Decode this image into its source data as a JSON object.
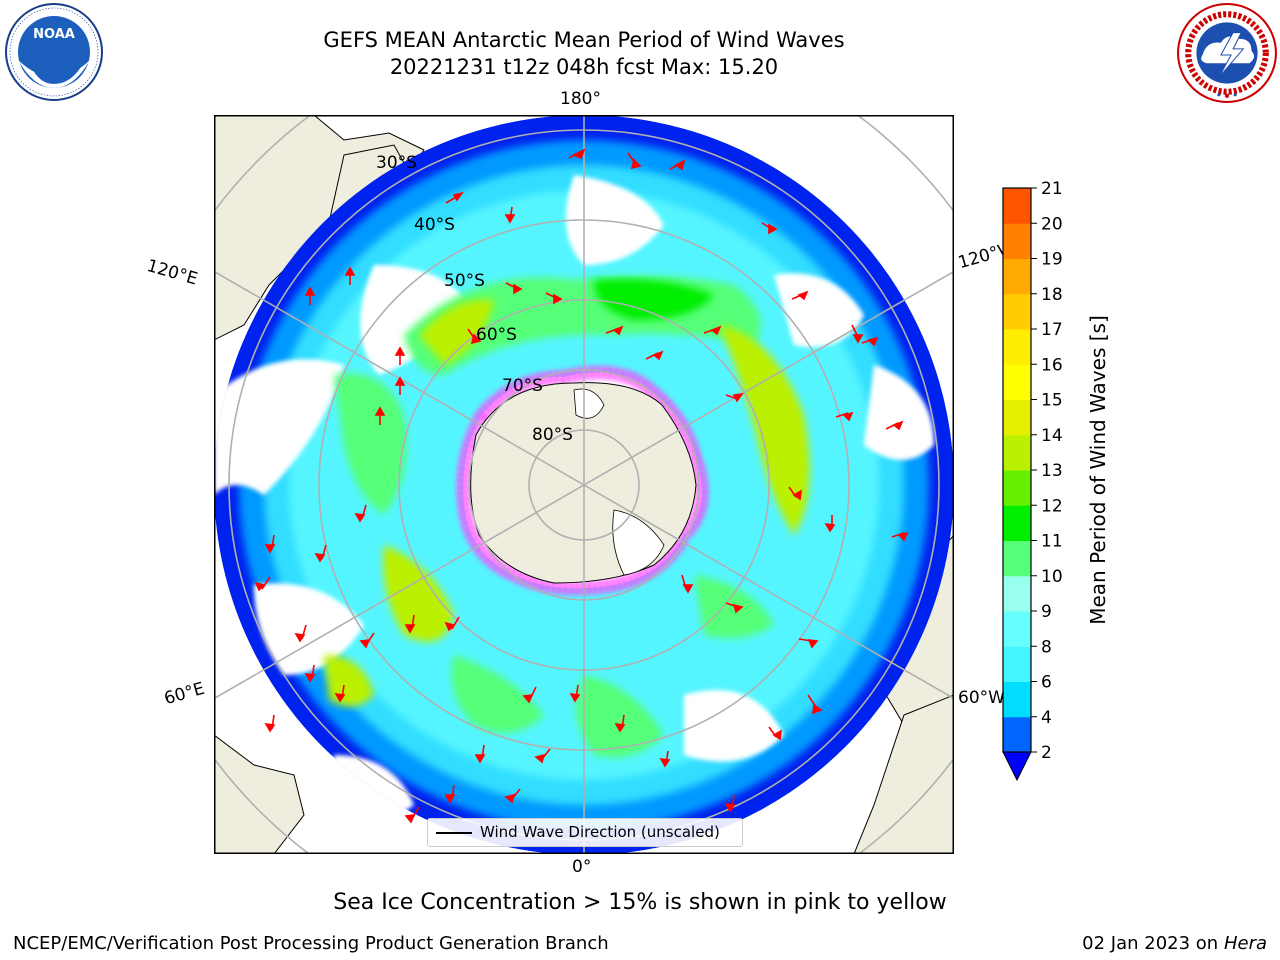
{
  "title": {
    "line1": "GEFS MEAN Antarctic Mean Period of Wind Waves",
    "line2": "20221231 t12z 048h fcst   Max: 15.20"
  },
  "logos": {
    "noaa": {
      "text": "NOAA",
      "ring_text": "NATIONAL OCEANIC AND ATMOSPHERIC ADMINISTRATION · U.S. DEPARTMENT OF COMMERCE"
    },
    "nws": {
      "ring_text": "NATIONAL WEATHER SERVICE"
    }
  },
  "map": {
    "projection": "south polar stereographic",
    "longitude_labels": {
      "lon_180": "180°",
      "lon_0": "0°",
      "lon_120e": "120°E",
      "lon_120w": "120°W",
      "lon_60e": "60°E",
      "lon_60w": "60°W"
    },
    "latitude_labels": [
      "30°S",
      "40°S",
      "50°S",
      "60°S",
      "70°S",
      "80°S"
    ],
    "legend": {
      "label": "Wind Wave Direction (unscaled)"
    }
  },
  "colorbar": {
    "label": "Mean Period of Wind Waves [s]",
    "ticks": [
      "2",
      "4",
      "6",
      "8",
      "9",
      "10",
      "11",
      "12",
      "13",
      "14",
      "15",
      "16",
      "17",
      "18",
      "19",
      "20",
      "21"
    ],
    "colors": [
      "#0066ff",
      "#00ddff",
      "#44f5ff",
      "#66ffff",
      "#99ffee",
      "#55ff77",
      "#00ee00",
      "#66f000",
      "#bbf000",
      "#e5f000",
      "#ffff00",
      "#ffee00",
      "#ffcc00",
      "#ffaa00",
      "#ff8000",
      "#ff5500",
      "#ff1a00",
      "#ff0000"
    ],
    "under_color": "#0000ff"
  },
  "colors": {
    "land": "#efedde",
    "open_ocean_low": "#0022ee",
    "sea_ice": "#ff44ff",
    "arrow": "#ff0000",
    "grid": "#b0b0b0"
  },
  "footer": {
    "note": "Sea Ice Concentration > 15% is shown in pink to yellow",
    "credit_left": "NCEP/EMC/Verification Post Processing Product Generation Branch",
    "credit_right_date": "02 Jan 2023 on ",
    "credit_right_host": "Hera"
  }
}
